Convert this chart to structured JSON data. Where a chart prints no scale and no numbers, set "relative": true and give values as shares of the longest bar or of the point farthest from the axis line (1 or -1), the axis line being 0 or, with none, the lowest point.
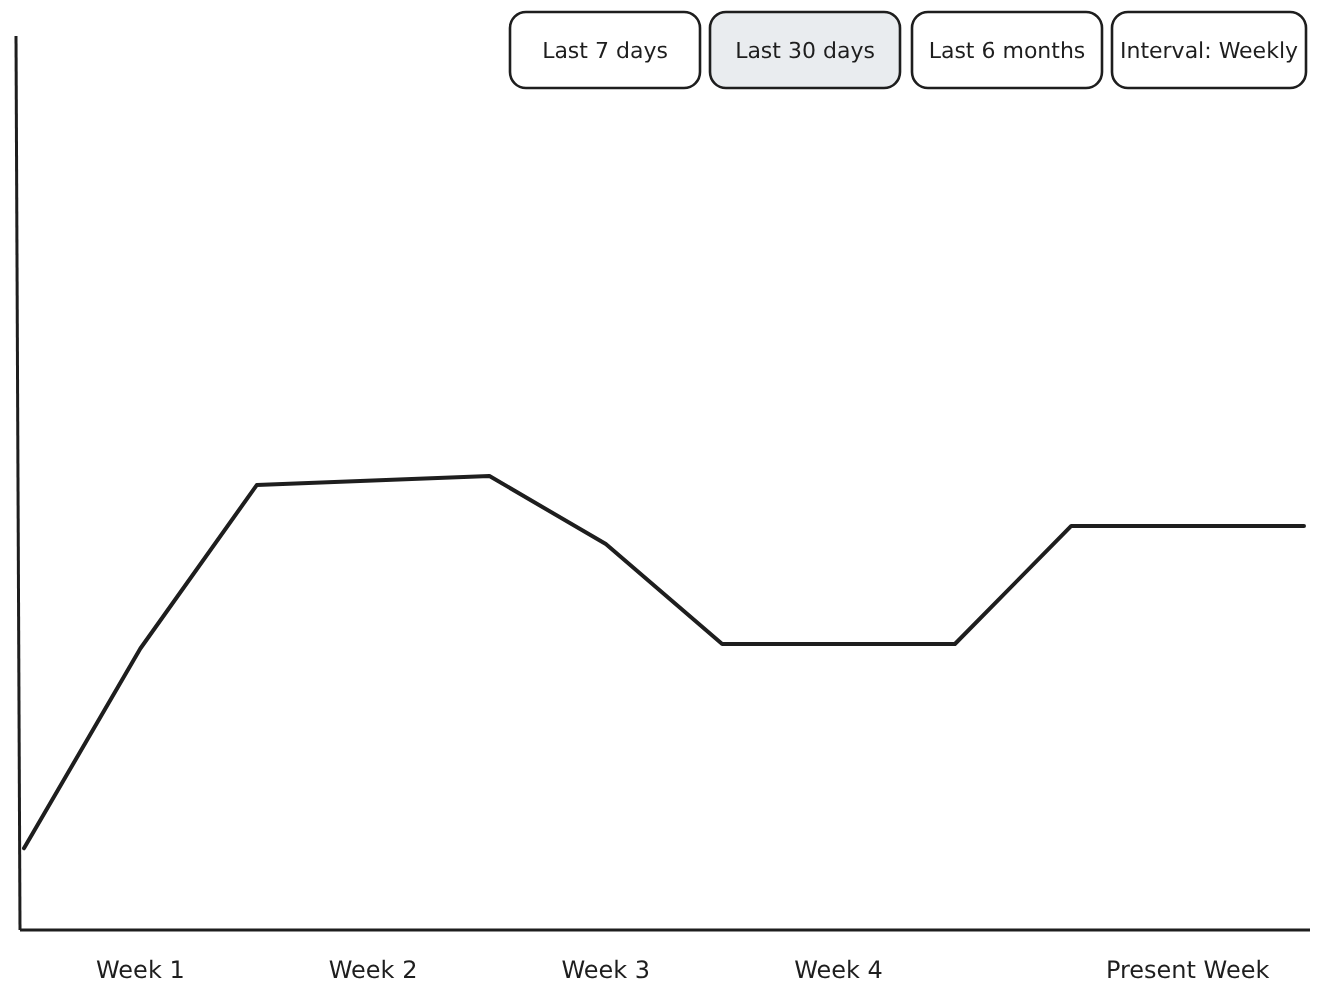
{
  "chart_data": {
    "type": "line",
    "relative": true,
    "categories": [
      null,
      "Week 1",
      null,
      "Week 2",
      null,
      "Week 3",
      null,
      "Week 4",
      null,
      null,
      "Present Week",
      null
    ],
    "values": [
      0.18,
      0.62,
      0.98,
      0.99,
      1,
      0.85,
      0.63,
      0.63,
      0.63,
      0.89,
      0.89,
      0.89
    ],
    "color": "#1e1e1e",
    "annotations": [
      "Last 7 days",
      "Last 30 days",
      "Last 6 months",
      "Interval: Weekly"
    ]
  }
}
